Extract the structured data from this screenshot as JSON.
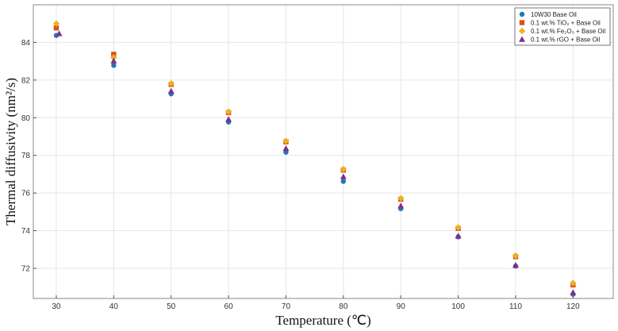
{
  "chart_data": {
    "type": "scatter",
    "title": "",
    "xlabel": "Temperature (℃)",
    "ylabel": "Thermal diffusivity (nm²/s)",
    "xlim": [
      26,
      127
    ],
    "ylim": [
      70.4,
      86
    ],
    "xticks": [
      30,
      40,
      50,
      60,
      70,
      80,
      90,
      100,
      110,
      120
    ],
    "yticks": [
      72,
      74,
      76,
      78,
      80,
      82,
      84
    ],
    "grid": true,
    "legend_position": "top-right",
    "series": [
      {
        "name": "10W30 Base Oil",
        "marker": "circle",
        "color": "#1f77b4",
        "x": [
          30,
          40,
          50,
          60,
          70,
          80,
          90,
          100,
          110,
          120
        ],
        "y": [
          84.37,
          82.78,
          81.27,
          79.77,
          78.17,
          76.62,
          75.17,
          73.67,
          72.12,
          70.62
        ]
      },
      {
        "name": "0.1 wt.% TiO₂ + Base Oil",
        "marker": "square",
        "color": "#d95319",
        "x": [
          30,
          40,
          50,
          60,
          70,
          80,
          90,
          100,
          110,
          120
        ],
        "y": [
          84.77,
          83.37,
          81.77,
          80.27,
          78.72,
          77.22,
          75.67,
          74.12,
          72.62,
          71.12
        ]
      },
      {
        "name": "0.1 wt.% Fe₂O₃ + Base Oil",
        "marker": "diamond",
        "color": "#edb120",
        "x": [
          30,
          40,
          50,
          60,
          70,
          80,
          90,
          100,
          110,
          120
        ],
        "y": [
          85.0,
          83.2,
          81.82,
          80.32,
          78.77,
          77.27,
          75.72,
          74.17,
          72.67,
          71.22
        ]
      },
      {
        "name": "0.1 wt.% rGO + Base Oil",
        "marker": "triangle",
        "color": "#7e2f8e",
        "x": [
          30.5,
          40,
          50,
          60,
          70,
          80,
          90,
          100,
          110,
          120
        ],
        "y": [
          84.47,
          83.02,
          81.42,
          79.92,
          78.37,
          76.87,
          75.32,
          73.72,
          72.17,
          70.72
        ]
      }
    ]
  }
}
